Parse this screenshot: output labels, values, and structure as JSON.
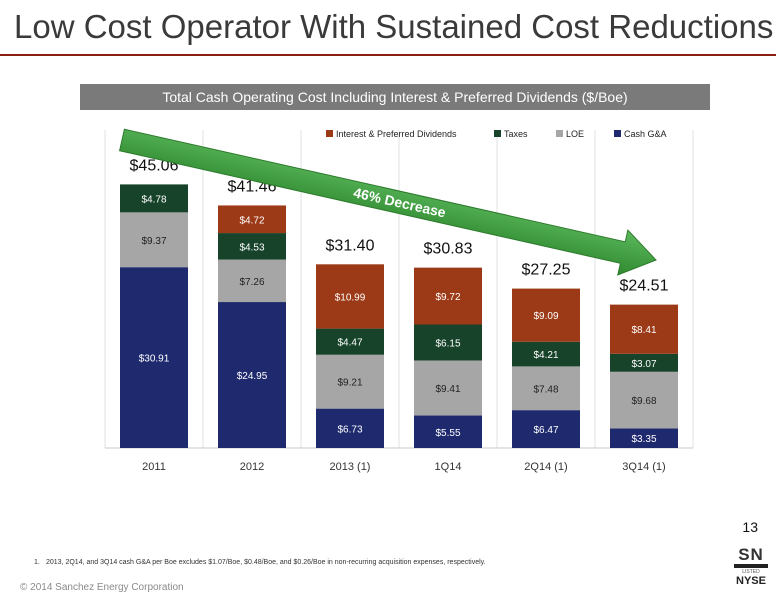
{
  "page_title": "Low Cost Operator With Sustained Cost Reductions",
  "page_number": "13",
  "footnote_number": "1.",
  "footnote_text": "2013, 2Q14, and 3Q14 cash G&A per Boe excludes $1.07/Boe, $0.48/Boe, and $0.26/Boe in non-recurring acquisition expenses, respectively.",
  "copyright": "© 2014 Sanchez Energy Corporation",
  "logo": {
    "ticker": "SN",
    "listed": "LISTED",
    "exchange": "NYSE"
  },
  "chart_data": {
    "type": "bar",
    "stacked": true,
    "title": "Total Cash Operating Cost Including Interest & Preferred Dividends ($/Boe)",
    "categories": [
      "2011",
      "2012",
      "2013 (1)",
      "1Q14",
      "2Q14 (1)",
      "3Q14 (1)"
    ],
    "series": [
      {
        "name": "Cash G&A",
        "color": "#1f2a6e",
        "values": [
          30.91,
          24.95,
          6.73,
          5.55,
          6.47,
          3.35
        ],
        "labels": [
          "$30.91",
          "$24.95",
          "$6.73",
          "$5.55",
          "$6.47",
          "$3.35"
        ]
      },
      {
        "name": "LOE",
        "color": "#a6a6a6",
        "values": [
          9.37,
          7.26,
          9.21,
          9.41,
          7.48,
          9.68
        ],
        "labels": [
          "$9.37",
          "$7.26",
          "$9.21",
          "$9.41",
          "$7.48",
          "$9.68"
        ]
      },
      {
        "name": "Taxes",
        "color": "#17432a",
        "values": [
          4.78,
          4.53,
          4.47,
          6.15,
          4.21,
          3.07
        ],
        "labels": [
          "$4.78",
          "$4.53",
          "$4.47",
          "$6.15",
          "$4.21",
          "$3.07"
        ]
      },
      {
        "name": "Interest & Preferred Dividends",
        "color": "#9c3a17",
        "values": [
          0,
          4.72,
          10.99,
          9.72,
          9.09,
          8.41
        ],
        "labels": [
          "",
          "$4.72",
          "$10.99",
          "$9.72",
          "$9.09",
          "$8.41"
        ]
      }
    ],
    "totals": [
      "$45.06",
      "$41.46",
      "$31.40",
      "$30.83",
      "$27.25",
      "$24.51"
    ],
    "legend_order": [
      "Interest & Preferred Dividends",
      "Taxes",
      "LOE",
      "Cash G&A"
    ],
    "legend_position": "top-right",
    "annotation": {
      "text": "46% Decrease",
      "color": "#3a9a3a"
    },
    "ylim": [
      0,
      52
    ],
    "grid": false
  }
}
